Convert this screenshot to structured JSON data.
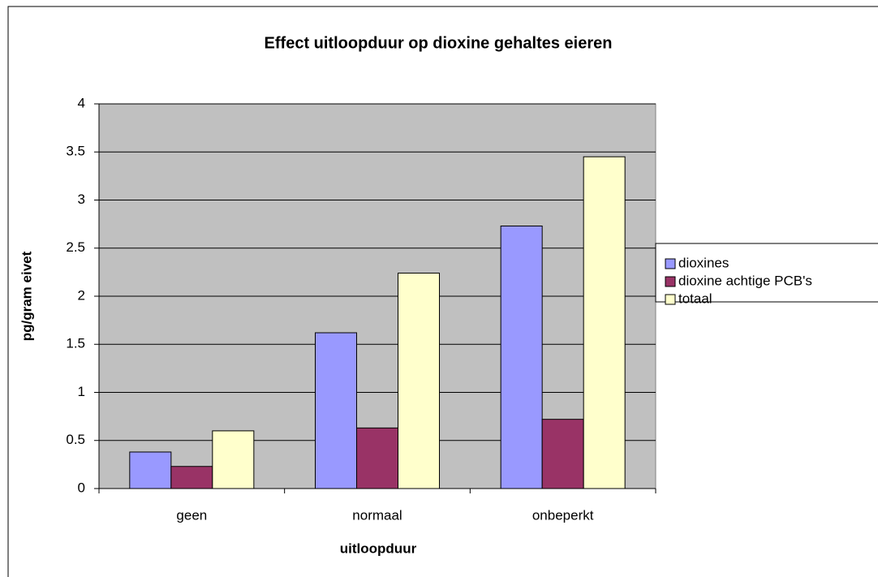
{
  "chart_data": {
    "type": "bar",
    "title": "Effect uitloopduur op dioxine gehaltes eieren",
    "x_label": "uitloopduur",
    "y_label": "pg/gram eivet",
    "categories": [
      "geen",
      "normaal",
      "onbeperkt"
    ],
    "series": [
      {
        "name": "dioxines",
        "color": "#9999ff",
        "values": [
          0.38,
          1.62,
          2.73
        ]
      },
      {
        "name": "dioxine achtige PCB's",
        "color": "#993366",
        "values": [
          0.23,
          0.63,
          0.72
        ]
      },
      {
        "name": "totaal",
        "color": "#ffffcc",
        "values": [
          0.6,
          2.24,
          3.45
        ]
      }
    ],
    "ylim": [
      0,
      4
    ],
    "yticks": [
      0,
      0.5,
      1,
      1.5,
      2,
      2.5,
      3,
      3.5,
      4
    ],
    "grid": true,
    "legend": "right"
  }
}
